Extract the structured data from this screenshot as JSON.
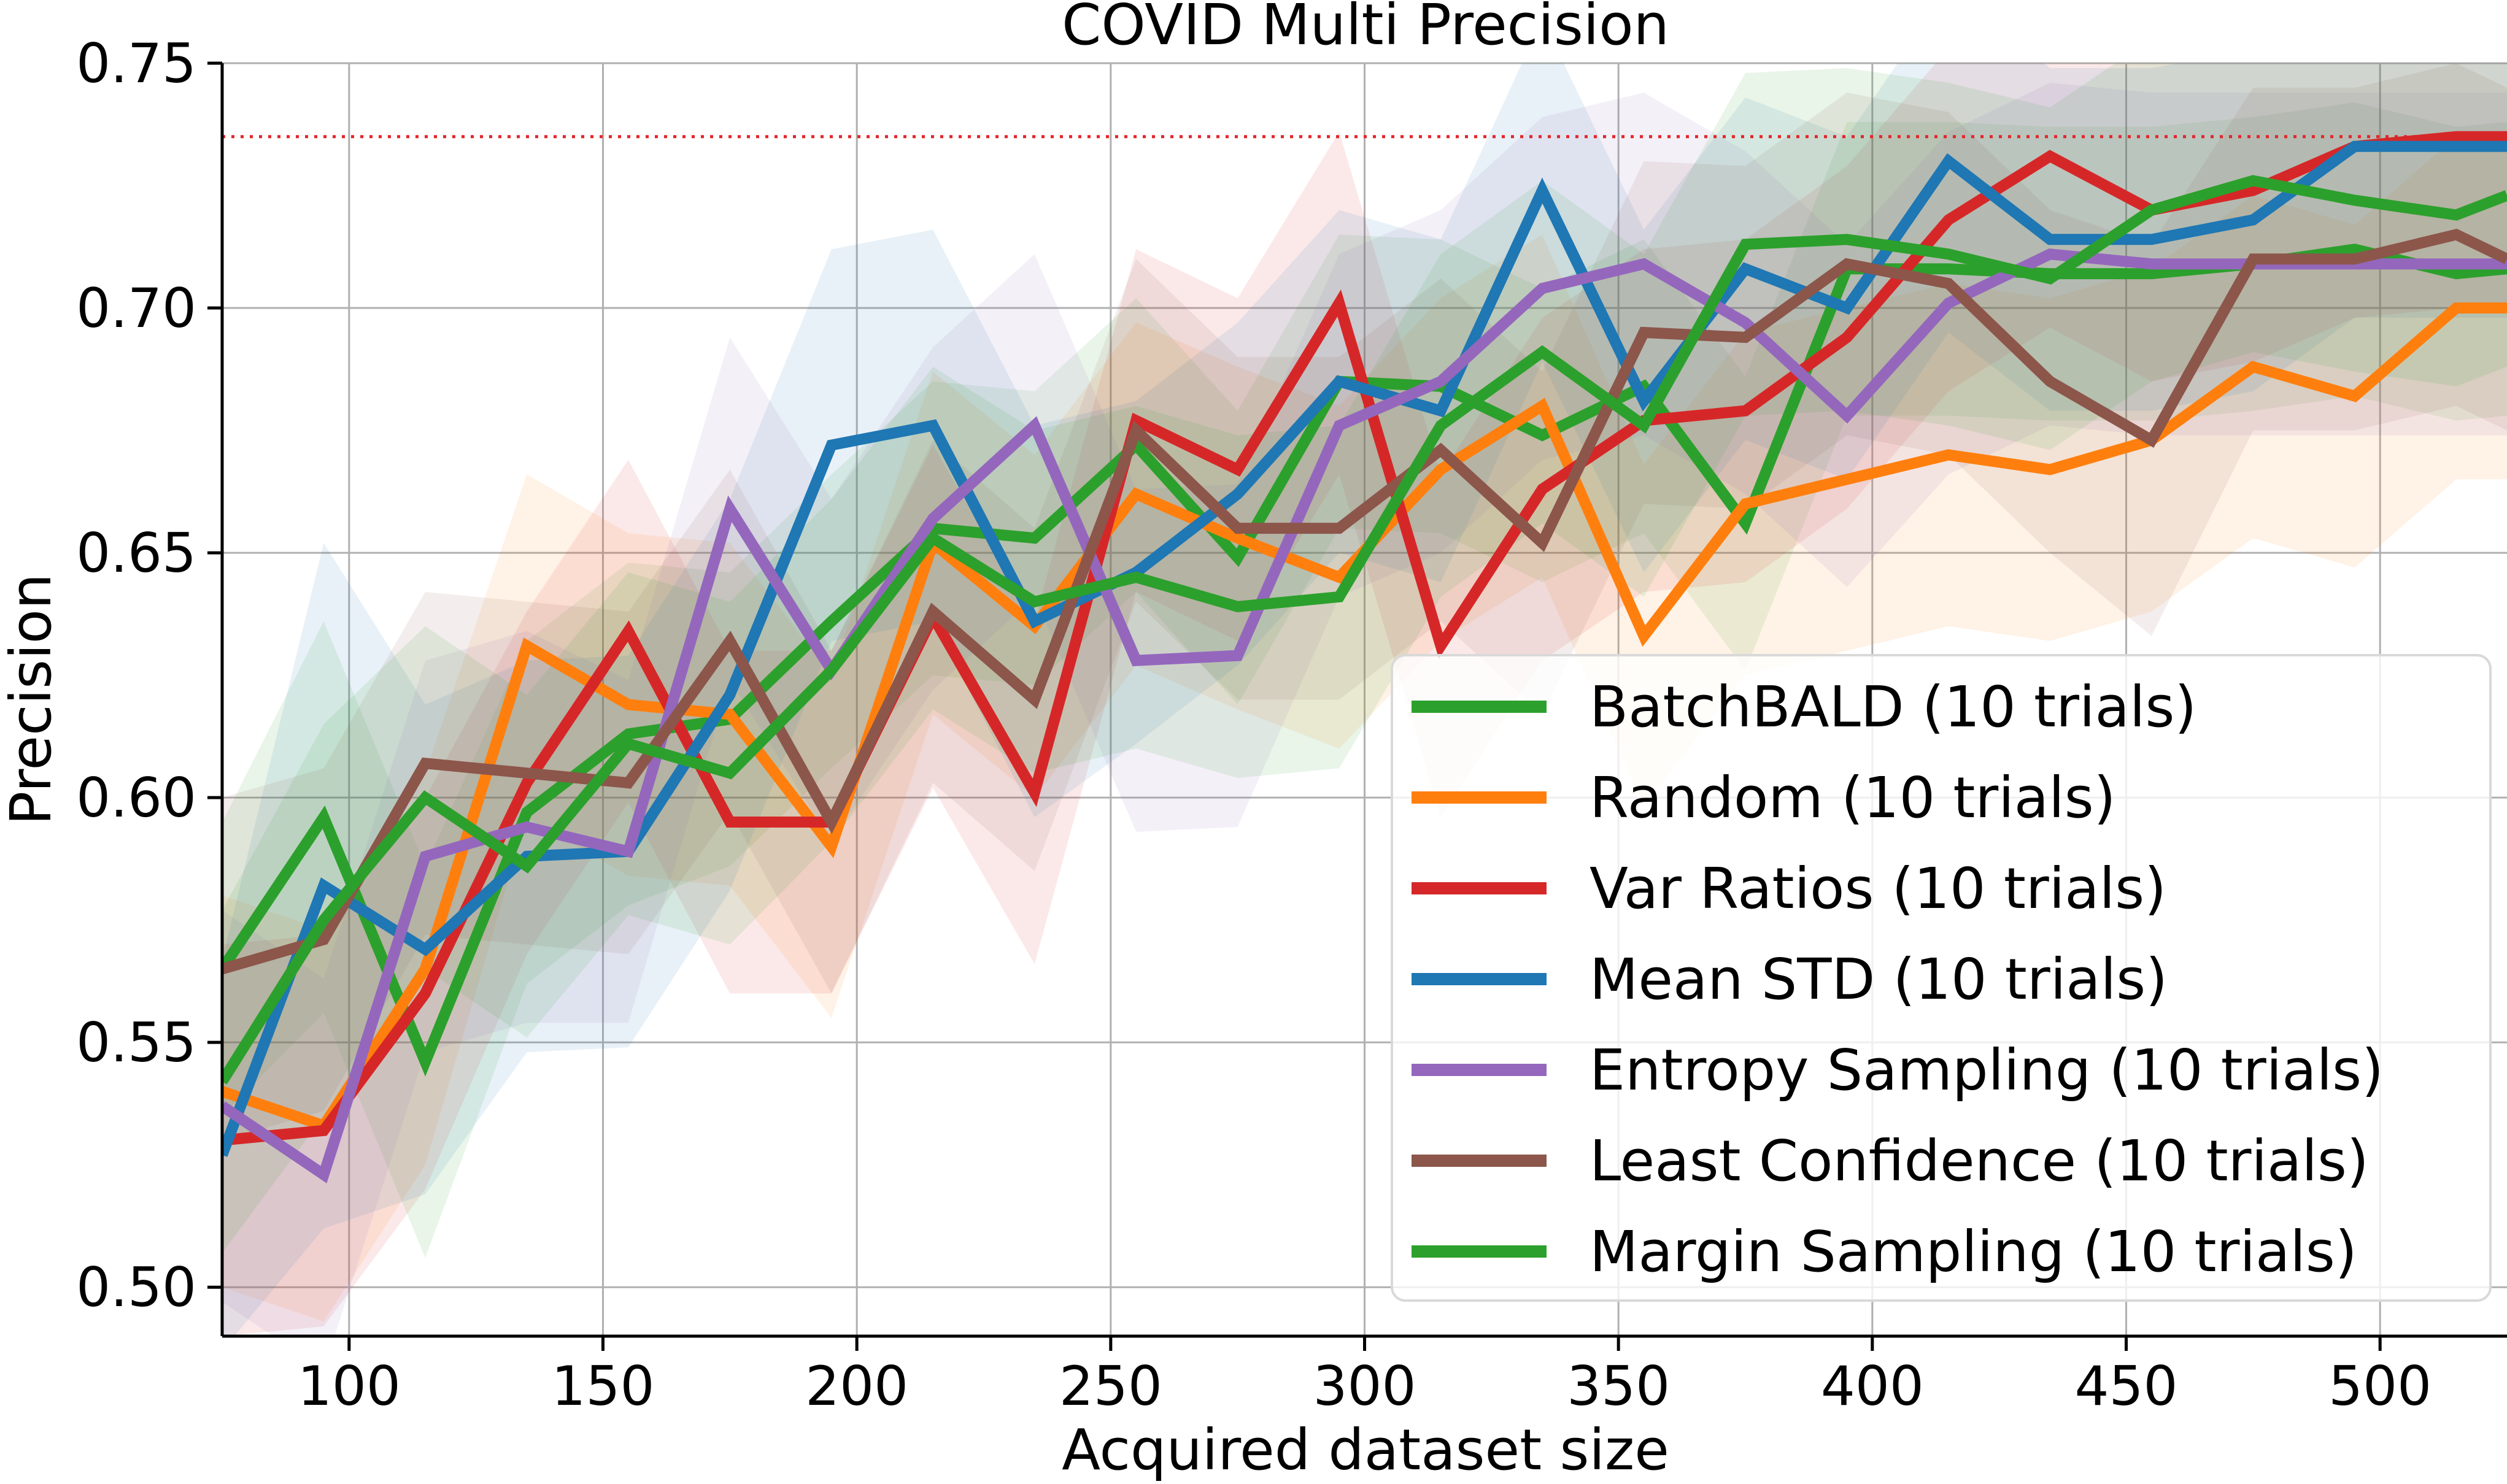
{
  "chart_data": {
    "type": "line",
    "title": "COVID Multi Precision",
    "xlabel": "Acquired dataset size",
    "ylabel": "Precision",
    "xlim": [
      75,
      525
    ],
    "ylim": [
      0.49,
      0.75
    ],
    "x_ticks": [
      100,
      150,
      200,
      250,
      300,
      350,
      400,
      450,
      500
    ],
    "x_tick_labels": [
      "100",
      "150",
      "200",
      "250",
      "300",
      "350",
      "400",
      "450",
      "500"
    ],
    "y_ticks": [
      0.5,
      0.55,
      0.6,
      0.65,
      0.7,
      0.75
    ],
    "y_tick_labels": [
      "0.50",
      "0.55",
      "0.60",
      "0.65",
      "0.70",
      "0.75"
    ],
    "grid": true,
    "legend_position": "lower-right",
    "reference_line": {
      "y": 0.735,
      "color": "#e3262a",
      "style": "dotted"
    },
    "x": [
      75,
      95,
      115,
      135,
      155,
      175,
      195,
      215,
      235,
      255,
      275,
      295,
      315,
      335,
      355,
      375,
      395,
      415,
      435,
      455,
      475,
      495,
      515,
      525
    ],
    "series": [
      {
        "name": "BatchBALD (10 trials)",
        "color": "#2ca02c",
        "values": [
          0.565,
          0.596,
          0.546,
          0.597,
          0.613,
          0.616,
          0.636,
          0.655,
          0.653,
          0.672,
          0.649,
          0.685,
          0.684,
          0.674,
          0.684,
          0.656,
          0.708,
          0.708,
          0.707,
          0.707,
          0.709,
          0.712,
          0.707,
          0.708
        ],
        "spread": [
          0.03,
          0.04,
          0.04,
          0.035,
          0.035,
          0.03,
          0.03,
          0.03,
          0.03,
          0.03,
          0.03,
          0.03,
          0.03,
          0.03,
          0.03,
          0.03,
          0.03,
          0.03,
          0.03,
          0.03,
          0.03,
          0.03,
          0.03,
          0.03
        ]
      },
      {
        "name": "Random (10 trials)",
        "color": "#ff7f0e",
        "values": [
          0.54,
          0.533,
          0.565,
          0.631,
          0.619,
          0.617,
          0.59,
          0.652,
          0.635,
          0.662,
          0.653,
          0.645,
          0.667,
          0.68,
          0.633,
          0.66,
          0.665,
          0.67,
          0.667,
          0.673,
          0.688,
          0.682,
          0.7,
          0.7
        ],
        "spread": [
          0.04,
          0.04,
          0.04,
          0.035,
          0.035,
          0.035,
          0.035,
          0.035,
          0.035,
          0.035,
          0.035,
          0.035,
          0.035,
          0.035,
          0.035,
          0.035,
          0.035,
          0.035,
          0.035,
          0.035,
          0.035,
          0.035,
          0.035,
          0.035
        ]
      },
      {
        "name": "Var Ratios (10 trials)",
        "color": "#d62728",
        "values": [
          0.53,
          0.532,
          0.56,
          0.603,
          0.634,
          0.595,
          0.595,
          0.637,
          0.601,
          0.677,
          0.667,
          0.701,
          0.631,
          0.663,
          0.677,
          0.679,
          0.694,
          0.718,
          0.731,
          0.72,
          0.724,
          0.733,
          0.735,
          0.735
        ],
        "spread": [
          0.04,
          0.04,
          0.04,
          0.035,
          0.035,
          0.035,
          0.035,
          0.035,
          0.035,
          0.035,
          0.035,
          0.035,
          0.035,
          0.035,
          0.035,
          0.035,
          0.035,
          0.035,
          0.035,
          0.035,
          0.035,
          0.035,
          0.035,
          0.035
        ]
      },
      {
        "name": "Mean STD (10 trials)",
        "color": "#1f77b4",
        "values": [
          0.527,
          0.582,
          0.569,
          0.588,
          0.589,
          0.621,
          0.672,
          0.676,
          0.636,
          0.646,
          0.662,
          0.685,
          0.679,
          0.724,
          0.681,
          0.708,
          0.7,
          0.73,
          0.714,
          0.714,
          0.718,
          0.733,
          0.733,
          0.733
        ],
        "spread": [
          0.04,
          0.07,
          0.05,
          0.04,
          0.04,
          0.04,
          0.04,
          0.04,
          0.04,
          0.035,
          0.035,
          0.035,
          0.035,
          0.035,
          0.035,
          0.035,
          0.035,
          0.035,
          0.035,
          0.035,
          0.035,
          0.035,
          0.035,
          0.035
        ]
      },
      {
        "name": "Entropy Sampling (10 trials)",
        "color": "#9467bd",
        "values": [
          0.537,
          0.523,
          0.588,
          0.594,
          0.589,
          0.659,
          0.626,
          0.657,
          0.676,
          0.628,
          0.629,
          0.676,
          0.685,
          0.704,
          0.709,
          0.697,
          0.678,
          0.701,
          0.711,
          0.709,
          0.709,
          0.709,
          0.709,
          0.709
        ],
        "spread": [
          0.04,
          0.04,
          0.04,
          0.04,
          0.035,
          0.035,
          0.035,
          0.035,
          0.035,
          0.035,
          0.035,
          0.035,
          0.035,
          0.035,
          0.035,
          0.035,
          0.035,
          0.035,
          0.035,
          0.035,
          0.035,
          0.035,
          0.035,
          0.035
        ]
      },
      {
        "name": "Least Confidence (10 trials)",
        "color": "#8c564b",
        "values": [
          0.565,
          0.571,
          0.607,
          0.605,
          0.603,
          0.632,
          0.595,
          0.638,
          0.62,
          0.675,
          0.655,
          0.655,
          0.671,
          0.652,
          0.695,
          0.694,
          0.709,
          0.705,
          0.685,
          0.673,
          0.71,
          0.71,
          0.715,
          0.71
        ],
        "spread": [
          0.035,
          0.035,
          0.035,
          0.035,
          0.035,
          0.035,
          0.035,
          0.035,
          0.035,
          0.035,
          0.035,
          0.035,
          0.035,
          0.035,
          0.035,
          0.035,
          0.035,
          0.035,
          0.035,
          0.04,
          0.035,
          0.035,
          0.035,
          0.035
        ]
      },
      {
        "name": "Margin Sampling (10 trials)",
        "color": "#2ca02c",
        "values": [
          0.542,
          0.575,
          0.6,
          0.586,
          0.611,
          0.605,
          0.626,
          0.653,
          0.64,
          0.645,
          0.639,
          0.641,
          0.676,
          0.691,
          0.676,
          0.713,
          0.714,
          0.711,
          0.706,
          0.72,
          0.726,
          0.722,
          0.719,
          0.723
        ],
        "spread": [
          0.035,
          0.04,
          0.035,
          0.035,
          0.035,
          0.035,
          0.035,
          0.035,
          0.035,
          0.035,
          0.035,
          0.035,
          0.035,
          0.035,
          0.035,
          0.035,
          0.035,
          0.035,
          0.035,
          0.035,
          0.035,
          0.035,
          0.035,
          0.035
        ]
      }
    ]
  }
}
